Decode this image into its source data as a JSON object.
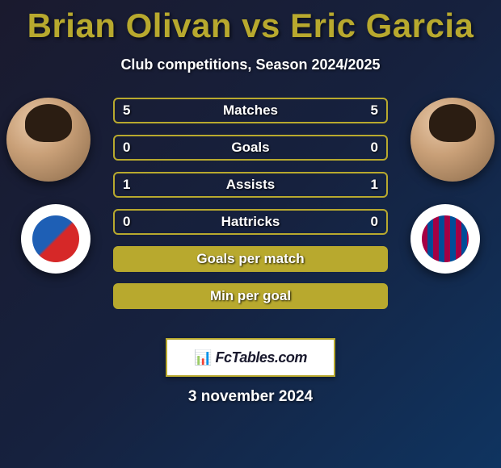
{
  "header": {
    "title": "Brian Olivan vs Eric Garcia",
    "subtitle": "Club competitions, Season 2024/2025",
    "title_color": "#b8a92e"
  },
  "players": {
    "left": {
      "name": "Brian Olivan",
      "club_accent": "#1e5fb5",
      "club_inner_bg": "linear-gradient(135deg,#1e5fb5 0%,#1e5fb5 48%,#d62828 52%,#d62828 100%)"
    },
    "right": {
      "name": "Eric Garcia",
      "club_accent": "#a50044",
      "club_inner_bg": "repeating-linear-gradient(90deg,#a50044 0 7px,#004d98 7px 14px)"
    }
  },
  "stats": {
    "accent_color": "#b8a92e",
    "rows": [
      {
        "label": "Matches",
        "left": "5",
        "right": "5",
        "filled": false
      },
      {
        "label": "Goals",
        "left": "0",
        "right": "0",
        "filled": false
      },
      {
        "label": "Assists",
        "left": "1",
        "right": "1",
        "filled": false
      },
      {
        "label": "Hattricks",
        "left": "0",
        "right": "0",
        "filled": false
      },
      {
        "label": "Goals per match",
        "left": "",
        "right": "",
        "filled": true
      },
      {
        "label": "Min per goal",
        "left": "",
        "right": "",
        "filled": true
      }
    ]
  },
  "footer": {
    "watermark": "FcTables.com",
    "date": "3 november 2024"
  },
  "style": {
    "background": "linear-gradient(135deg, #1a1a2e 0%, #16213e 50%, #0f3460 100%)",
    "text_color": "#ffffff"
  }
}
